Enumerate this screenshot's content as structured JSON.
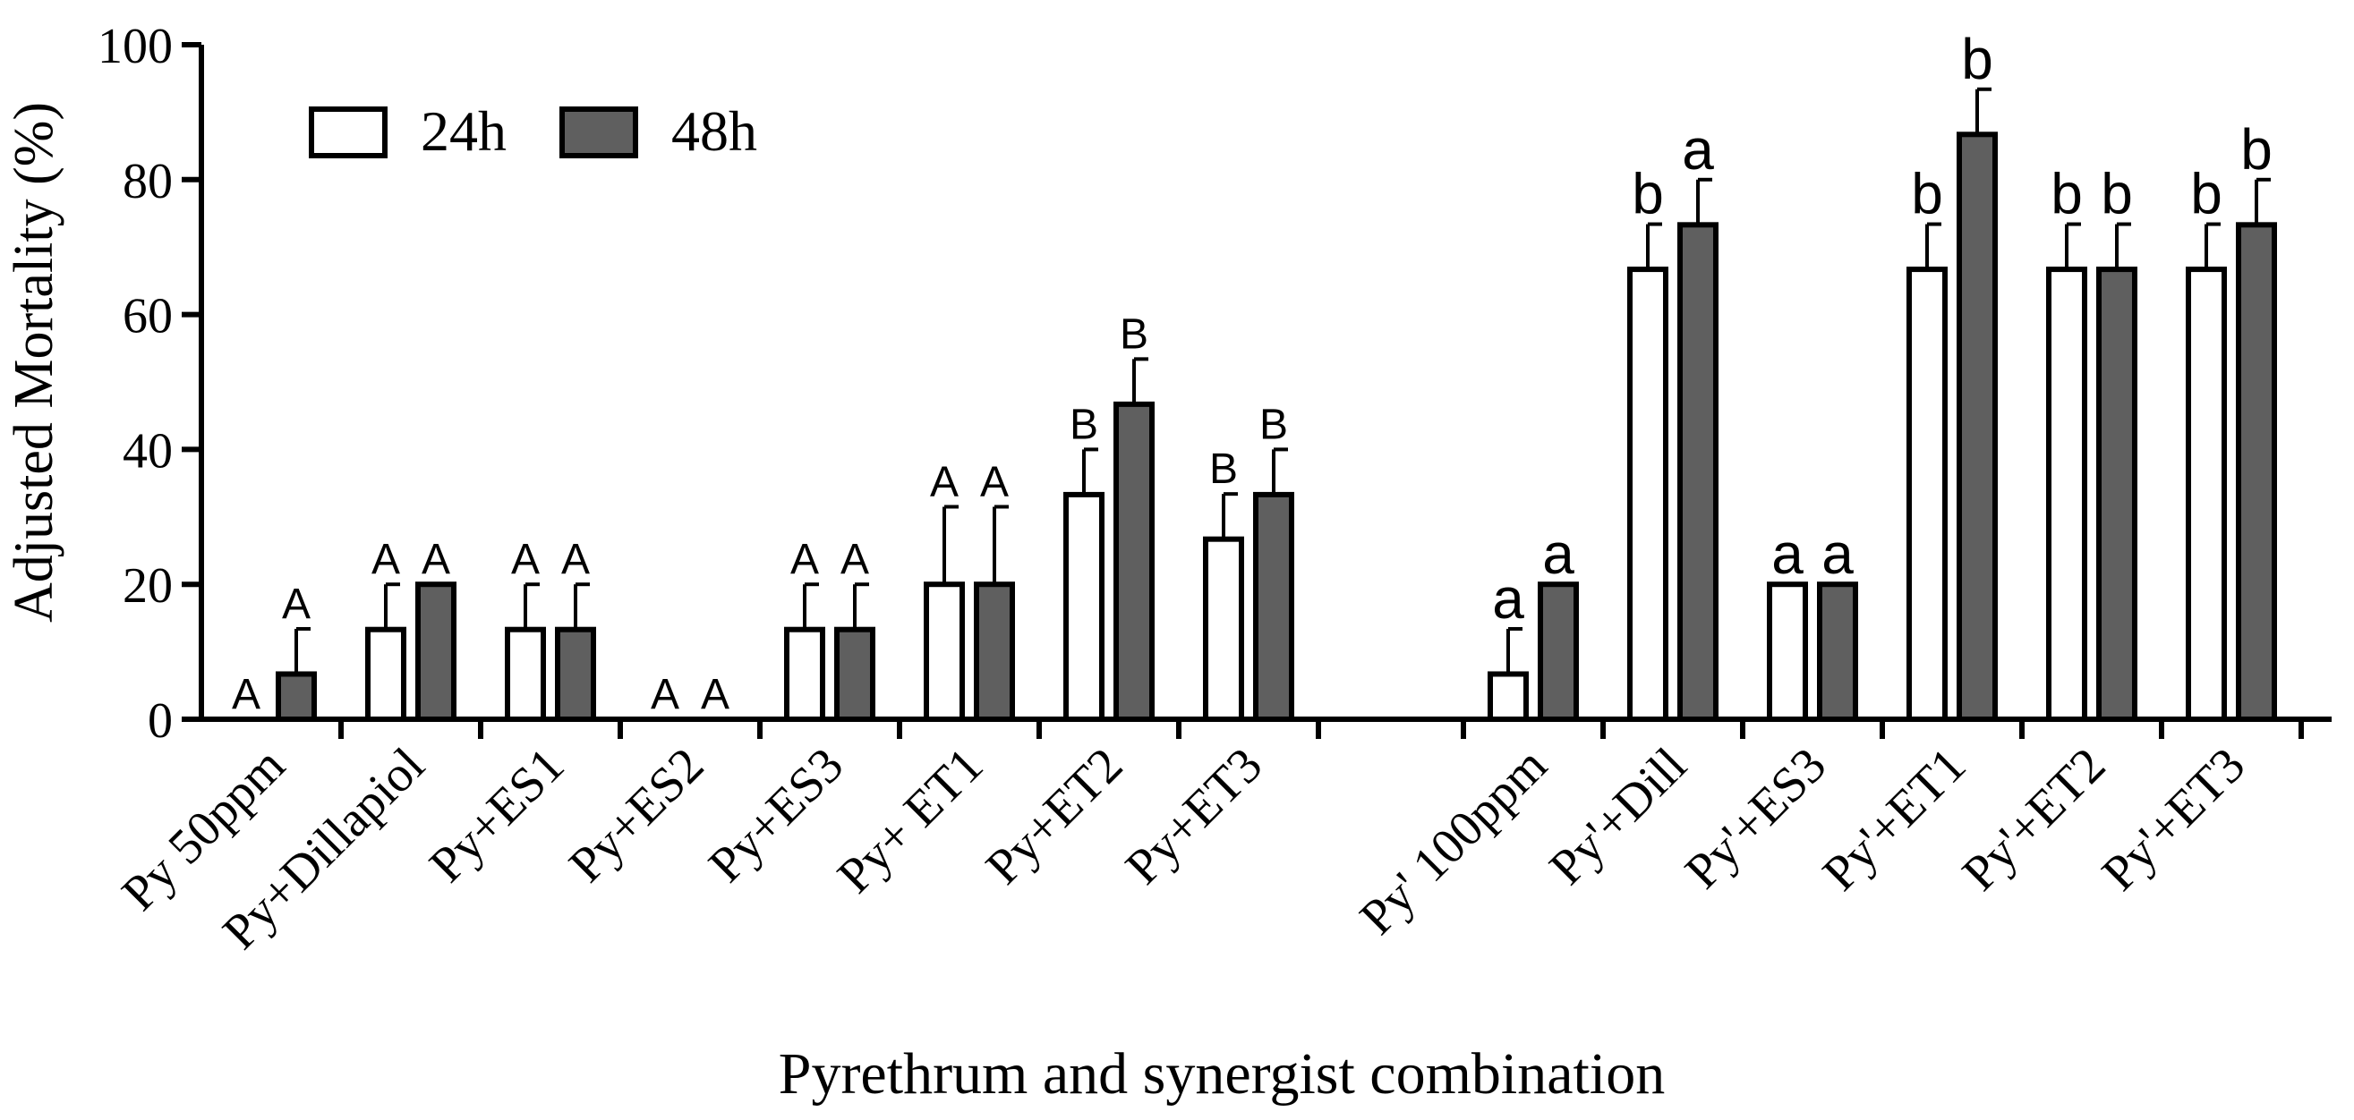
{
  "chart_data": {
    "type": "bar",
    "title": "",
    "xlabel": "Pyrethrum and synergist combination",
    "ylabel": "Adjusted Mortality (%)",
    "ylim": [
      0,
      100
    ],
    "yticks": [
      "0",
      "20",
      "40",
      "60",
      "80",
      "100"
    ],
    "legend_position": "top-left",
    "groups": [
      {
        "name": "Py 50ppm",
        "categories": [
          "Py 50ppm",
          "Py+Dillapiol",
          "Py+ES1",
          "Py+ES2",
          "Py+ES3",
          "Py+ ET1",
          "Py+ET2",
          "Py+ET3"
        ]
      },
      {
        "name": "Py' 100ppm",
        "categories": [
          "Py' 100ppm",
          "Py'+Dill",
          "Py'+ES3",
          "Py'+ET1",
          "Py'+ET2",
          "Py'+ET3"
        ]
      }
    ],
    "categories": [
      "Py 50ppm",
      "Py+Dillapiol",
      "Py+ES1",
      "Py+ES2",
      "Py+ES3",
      "Py+ ET1",
      "Py+ET2",
      "Py+ET3",
      "Py' 100ppm",
      "Py'+Dill",
      "Py'+ES3",
      "Py'+ET1",
      "Py'+ET2",
      "Py'+ET3"
    ],
    "series": [
      {
        "name": "24h",
        "color": "#ffffff",
        "values": [
          0,
          13.3,
          13.3,
          0,
          13.3,
          20,
          33.3,
          26.7,
          6.7,
          66.7,
          20,
          66.7,
          66.7,
          66.7
        ],
        "errors": [
          0,
          6.7,
          6.7,
          0,
          6.7,
          11.5,
          6.7,
          6.7,
          6.7,
          6.7,
          0,
          6.7,
          6.7,
          6.7
        ],
        "letters": [
          "A",
          "A",
          "A",
          "A",
          "A",
          "A",
          "B",
          "B",
          "a",
          "b",
          "a",
          "b",
          "b",
          "b"
        ]
      },
      {
        "name": "48h",
        "color": "#5f5f5f",
        "values": [
          6.7,
          20,
          13.3,
          0,
          13.3,
          20,
          46.7,
          33.3,
          20,
          73.3,
          20,
          86.7,
          66.7,
          73.3
        ],
        "errors": [
          6.7,
          0,
          6.7,
          0,
          6.7,
          11.5,
          6.7,
          6.7,
          0,
          6.7,
          0,
          6.7,
          6.7,
          6.7
        ],
        "letters": [
          "A",
          "A",
          "A",
          "A",
          "A",
          "A",
          "B",
          "B",
          "a",
          "a",
          "a",
          "b",
          "b",
          "b"
        ]
      }
    ]
  }
}
